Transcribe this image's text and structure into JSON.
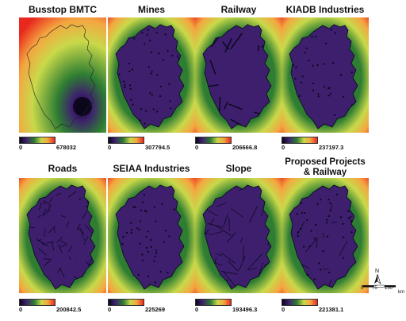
{
  "panels": [
    {
      "title": "Busstop BMTC",
      "legend_min": "0",
      "legend_max": "678032",
      "type": "busstop"
    },
    {
      "title": "Mines",
      "legend_min": "0",
      "legend_max": "307794.5",
      "type": "points"
    },
    {
      "title": "Railway",
      "legend_min": "0",
      "legend_max": "206666.8",
      "type": "lines"
    },
    {
      "title": "KIADB Industries",
      "legend_min": "0",
      "legend_max": "237197.3",
      "type": "points"
    },
    {
      "title": "Roads",
      "legend_min": "0",
      "legend_max": "200842.5",
      "type": "roads"
    },
    {
      "title": "SEIAA Industries",
      "legend_min": "0",
      "legend_max": "225269",
      "type": "points"
    },
    {
      "title": "Slope",
      "legend_min": "0",
      "legend_max": "193496.3",
      "type": "slope"
    },
    {
      "title": "Proposed Projects & Railway",
      "title_line1": "Proposed Projects",
      "title_line2": "& Railway",
      "legend_min": "0",
      "legend_max": "221381.1",
      "type": "mixed"
    }
  ],
  "scale_bar": {
    "north_label": "N",
    "labels": [
      "0",
      "75",
      "150"
    ],
    "unit": "km"
  },
  "colors": {
    "low": "#0a0618",
    "low_mid": "#3d1f6e",
    "mid": "#2e7d32",
    "mid_high": "#c9d94a",
    "high_mid": "#f4a640",
    "high": "#e8281e"
  }
}
